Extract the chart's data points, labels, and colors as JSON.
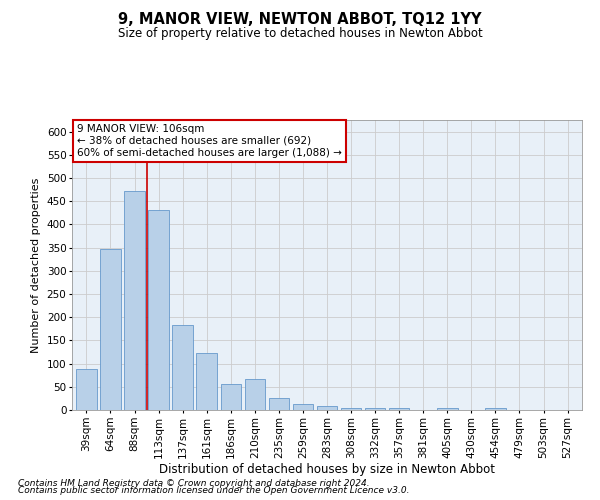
{
  "title": "9, MANOR VIEW, NEWTON ABBOT, TQ12 1YY",
  "subtitle": "Size of property relative to detached houses in Newton Abbot",
  "xlabel": "Distribution of detached houses by size in Newton Abbot",
  "ylabel": "Number of detached properties",
  "categories": [
    "39sqm",
    "64sqm",
    "88sqm",
    "113sqm",
    "137sqm",
    "161sqm",
    "186sqm",
    "210sqm",
    "235sqm",
    "259sqm",
    "283sqm",
    "308sqm",
    "332sqm",
    "357sqm",
    "381sqm",
    "405sqm",
    "430sqm",
    "454sqm",
    "479sqm",
    "503sqm",
    "527sqm"
  ],
  "values": [
    88,
    348,
    472,
    430,
    183,
    122,
    56,
    67,
    25,
    13,
    8,
    4,
    4,
    4,
    0,
    5,
    0,
    4,
    0,
    0,
    0
  ],
  "bar_color": "#b8d0e8",
  "bar_edge_color": "#6699cc",
  "grid_color": "#cccccc",
  "background_color": "#e8f0f8",
  "property_line_x": 2.5,
  "annotation_text": "9 MANOR VIEW: 106sqm\n← 38% of detached houses are smaller (692)\n60% of semi-detached houses are larger (1,088) →",
  "annotation_box_color": "#ffffff",
  "annotation_box_edge": "#cc0000",
  "vline_color": "#cc0000",
  "ylim": [
    0,
    625
  ],
  "yticks": [
    0,
    50,
    100,
    150,
    200,
    250,
    300,
    350,
    400,
    450,
    500,
    550,
    600
  ],
  "footnote1": "Contains HM Land Registry data © Crown copyright and database right 2024.",
  "footnote2": "Contains public sector information licensed under the Open Government Licence v3.0.",
  "title_fontsize": 10.5,
  "subtitle_fontsize": 8.5,
  "xlabel_fontsize": 8.5,
  "ylabel_fontsize": 8,
  "tick_fontsize": 7.5,
  "annotation_fontsize": 7.5,
  "footnote_fontsize": 6.5
}
